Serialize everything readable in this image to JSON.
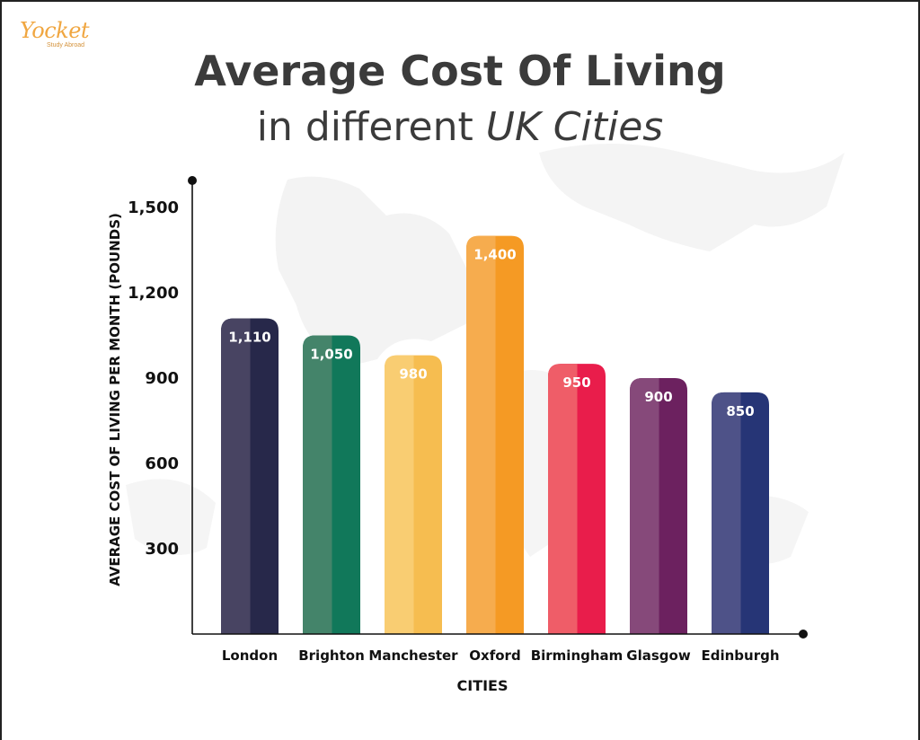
{
  "logo": {
    "word": "Yocket",
    "tagline": "Study Abroad"
  },
  "title": {
    "line1": "Average Cost Of Living",
    "line2_plain": "in different ",
    "line2_emphasis": "UK Cities"
  },
  "chart_data": {
    "type": "bar",
    "categories": [
      "London",
      "Brighton",
      "Manchester",
      "Oxford",
      "Birmingham",
      "Glasgow",
      "Edinburgh"
    ],
    "values": [
      1110,
      1050,
      980,
      1400,
      950,
      900,
      850
    ],
    "value_labels": [
      "1,110",
      "1,050",
      "980",
      "1,400",
      "950",
      "900",
      "850"
    ],
    "bar_colors": [
      [
        "#484462",
        "#27284a"
      ],
      [
        "#44846a",
        "#11785a"
      ],
      [
        "#f9cd72",
        "#f6bd50"
      ],
      [
        "#f6ac4e",
        "#f59a24"
      ],
      [
        "#ef5d68",
        "#e91d4b"
      ],
      [
        "#86497a",
        "#6c215f"
      ],
      [
        "#4e5288",
        "#263576"
      ]
    ],
    "xlabel": "CITIES",
    "ylabel": "AVERAGE COST OF LIVING PER MONTH (POUNDS)",
    "yticks": [
      300,
      600,
      900,
      1200,
      1500
    ],
    "ytick_labels": [
      "300",
      "600",
      "900",
      "1,200",
      "1,500"
    ],
    "ylim": [
      0,
      1600
    ],
    "grid": false,
    "legend": "none"
  }
}
